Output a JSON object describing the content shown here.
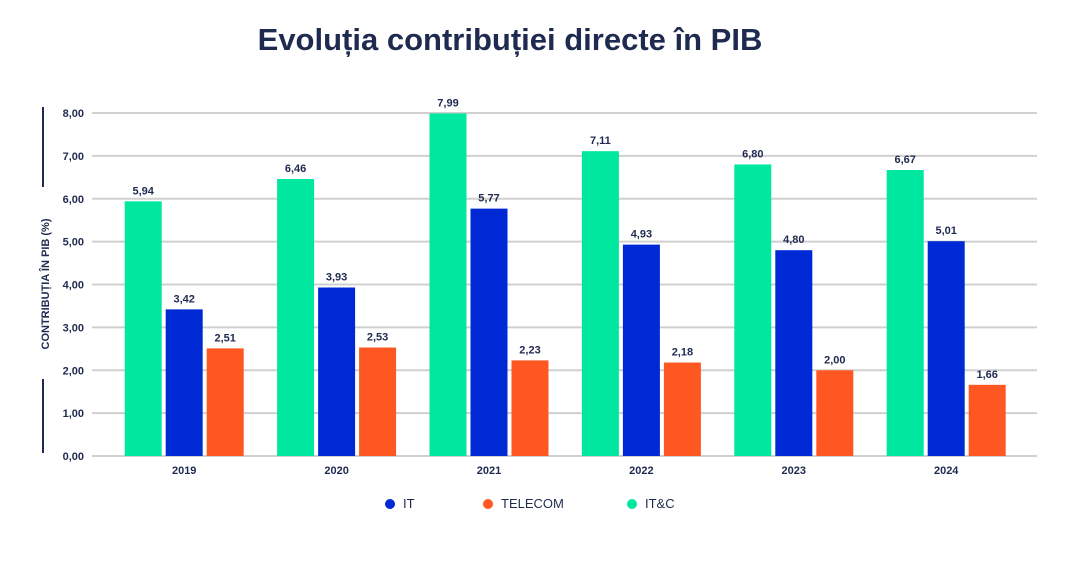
{
  "chart_data": {
    "type": "bar",
    "title": "Evoluția contribuției directe în PIB",
    "xlabel": "",
    "ylabel": "CONTRIBUȚIA ÎN PIB (%)",
    "ylim": [
      0,
      8
    ],
    "yticks": [
      "0,00",
      "1,00",
      "2,00",
      "3,00",
      "4,00",
      "5,00",
      "6,00",
      "7,00",
      "8,00"
    ],
    "grid": true,
    "legend_position": "bottom",
    "categories": [
      "2019",
      "2020",
      "2021",
      "2022",
      "2023",
      "2024"
    ],
    "series": [
      {
        "name": "IT&C",
        "color": "#00e89f",
        "values": [
          5.94,
          6.46,
          7.99,
          7.11,
          6.8,
          6.67
        ]
      },
      {
        "name": "IT",
        "color": "#0029d6",
        "values": [
          3.42,
          3.93,
          5.77,
          4.93,
          4.8,
          5.01
        ]
      },
      {
        "name": "TELECOM",
        "color": "#ff5722",
        "values": [
          2.51,
          2.53,
          2.23,
          2.18,
          2.0,
          1.66
        ]
      }
    ],
    "legend_order": [
      "IT",
      "TELECOM",
      "IT&C"
    ]
  }
}
